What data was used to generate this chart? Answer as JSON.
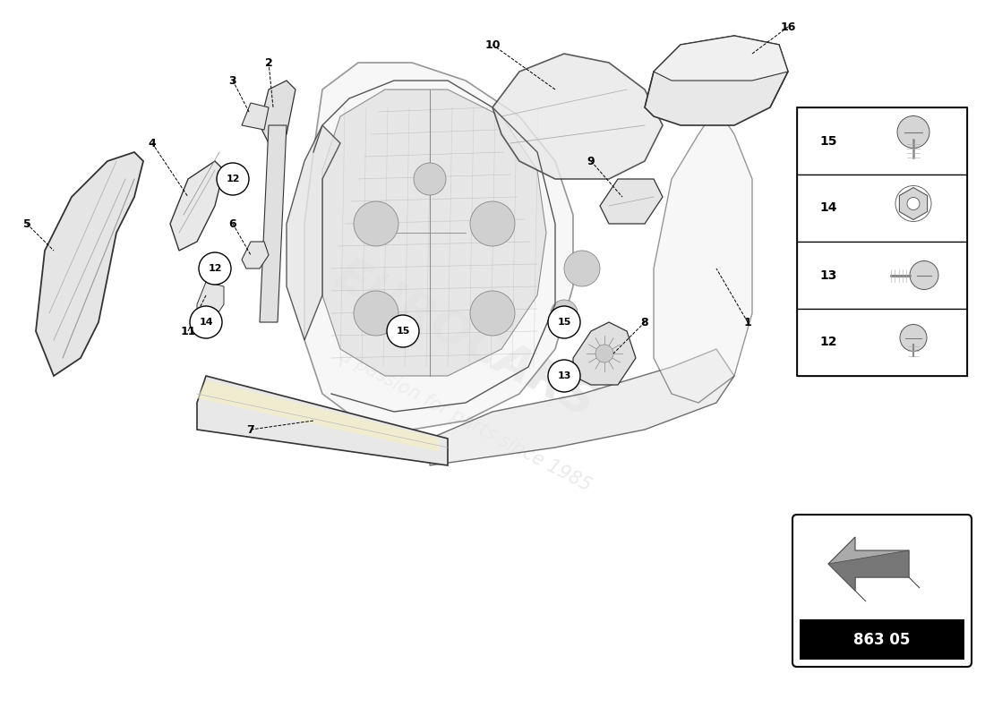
{
  "page_code": "863 05",
  "background_color": "#ffffff",
  "watermark_lines": [
    "EUROCARS",
    "a passion for parts since 1985"
  ],
  "watermark_color": "#cccccc",
  "watermark_alpha": 0.4,
  "sidebar_items": [
    {
      "num": "15"
    },
    {
      "num": "14"
    },
    {
      "num": "13"
    },
    {
      "num": "12"
    }
  ],
  "label_fontsize": 10,
  "lc": "#333333",
  "fc_part": "#e8e8e8",
  "fc_dark": "#cccccc"
}
